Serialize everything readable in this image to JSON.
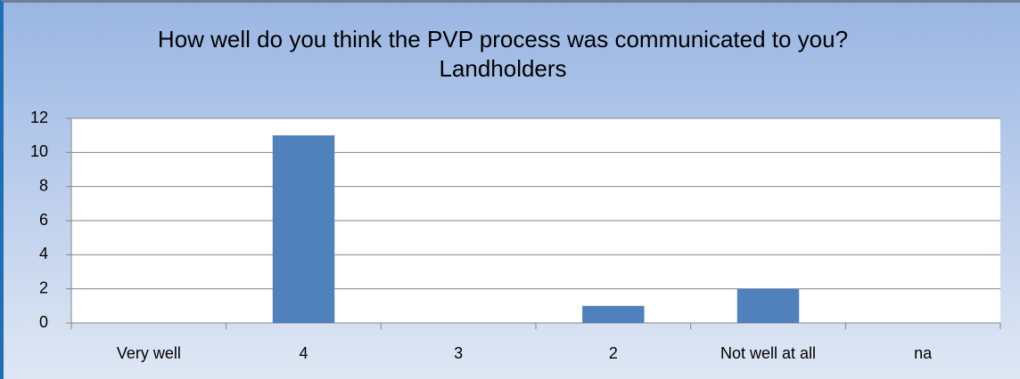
{
  "chart_data": {
    "type": "bar",
    "title": "How well do you think the PVP process was communicated to you? Landholders",
    "categories": [
      "Very well",
      "4",
      "3",
      "2",
      "Not well at all",
      "na"
    ],
    "values": [
      0,
      11,
      0,
      1,
      2,
      0
    ],
    "color": "#4f81bd",
    "ylim": [
      0,
      12
    ],
    "yticks": [
      0,
      2,
      4,
      6,
      8,
      10,
      12
    ],
    "grid": true
  }
}
